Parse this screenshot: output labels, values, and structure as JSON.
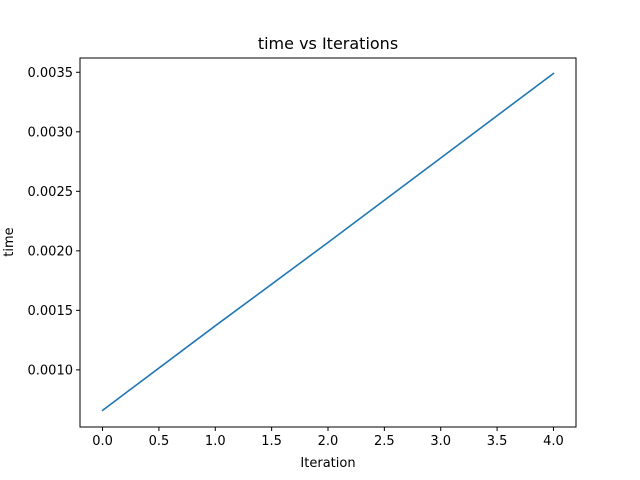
{
  "chart_data": {
    "type": "line",
    "title": "time vs Iterations",
    "xlabel": "Iteration",
    "ylabel": "time",
    "xlim": [
      -0.2,
      4.2
    ],
    "ylim": [
      0.00052,
      0.00362
    ],
    "grid": false,
    "legend": "none",
    "x_ticks": [
      0.0,
      0.5,
      1.0,
      1.5,
      2.0,
      2.5,
      3.0,
      3.5,
      4.0
    ],
    "x_tick_labels": [
      "0.0",
      "0.5",
      "1.0",
      "1.5",
      "2.0",
      "2.5",
      "3.0",
      "3.5",
      "4.0"
    ],
    "y_ticks": [
      0.001,
      0.0015,
      0.002,
      0.0025,
      0.003,
      0.0035
    ],
    "y_tick_labels": [
      "0.0010",
      "0.0015",
      "0.0020",
      "0.0025",
      "0.0030",
      "0.0035"
    ],
    "series": [
      {
        "color": "#1f77b4",
        "x": [
          0,
          1,
          2,
          3,
          4
        ],
        "y": [
          0.00066,
          0.00137,
          0.00207,
          0.00278,
          0.00349
        ]
      }
    ]
  }
}
